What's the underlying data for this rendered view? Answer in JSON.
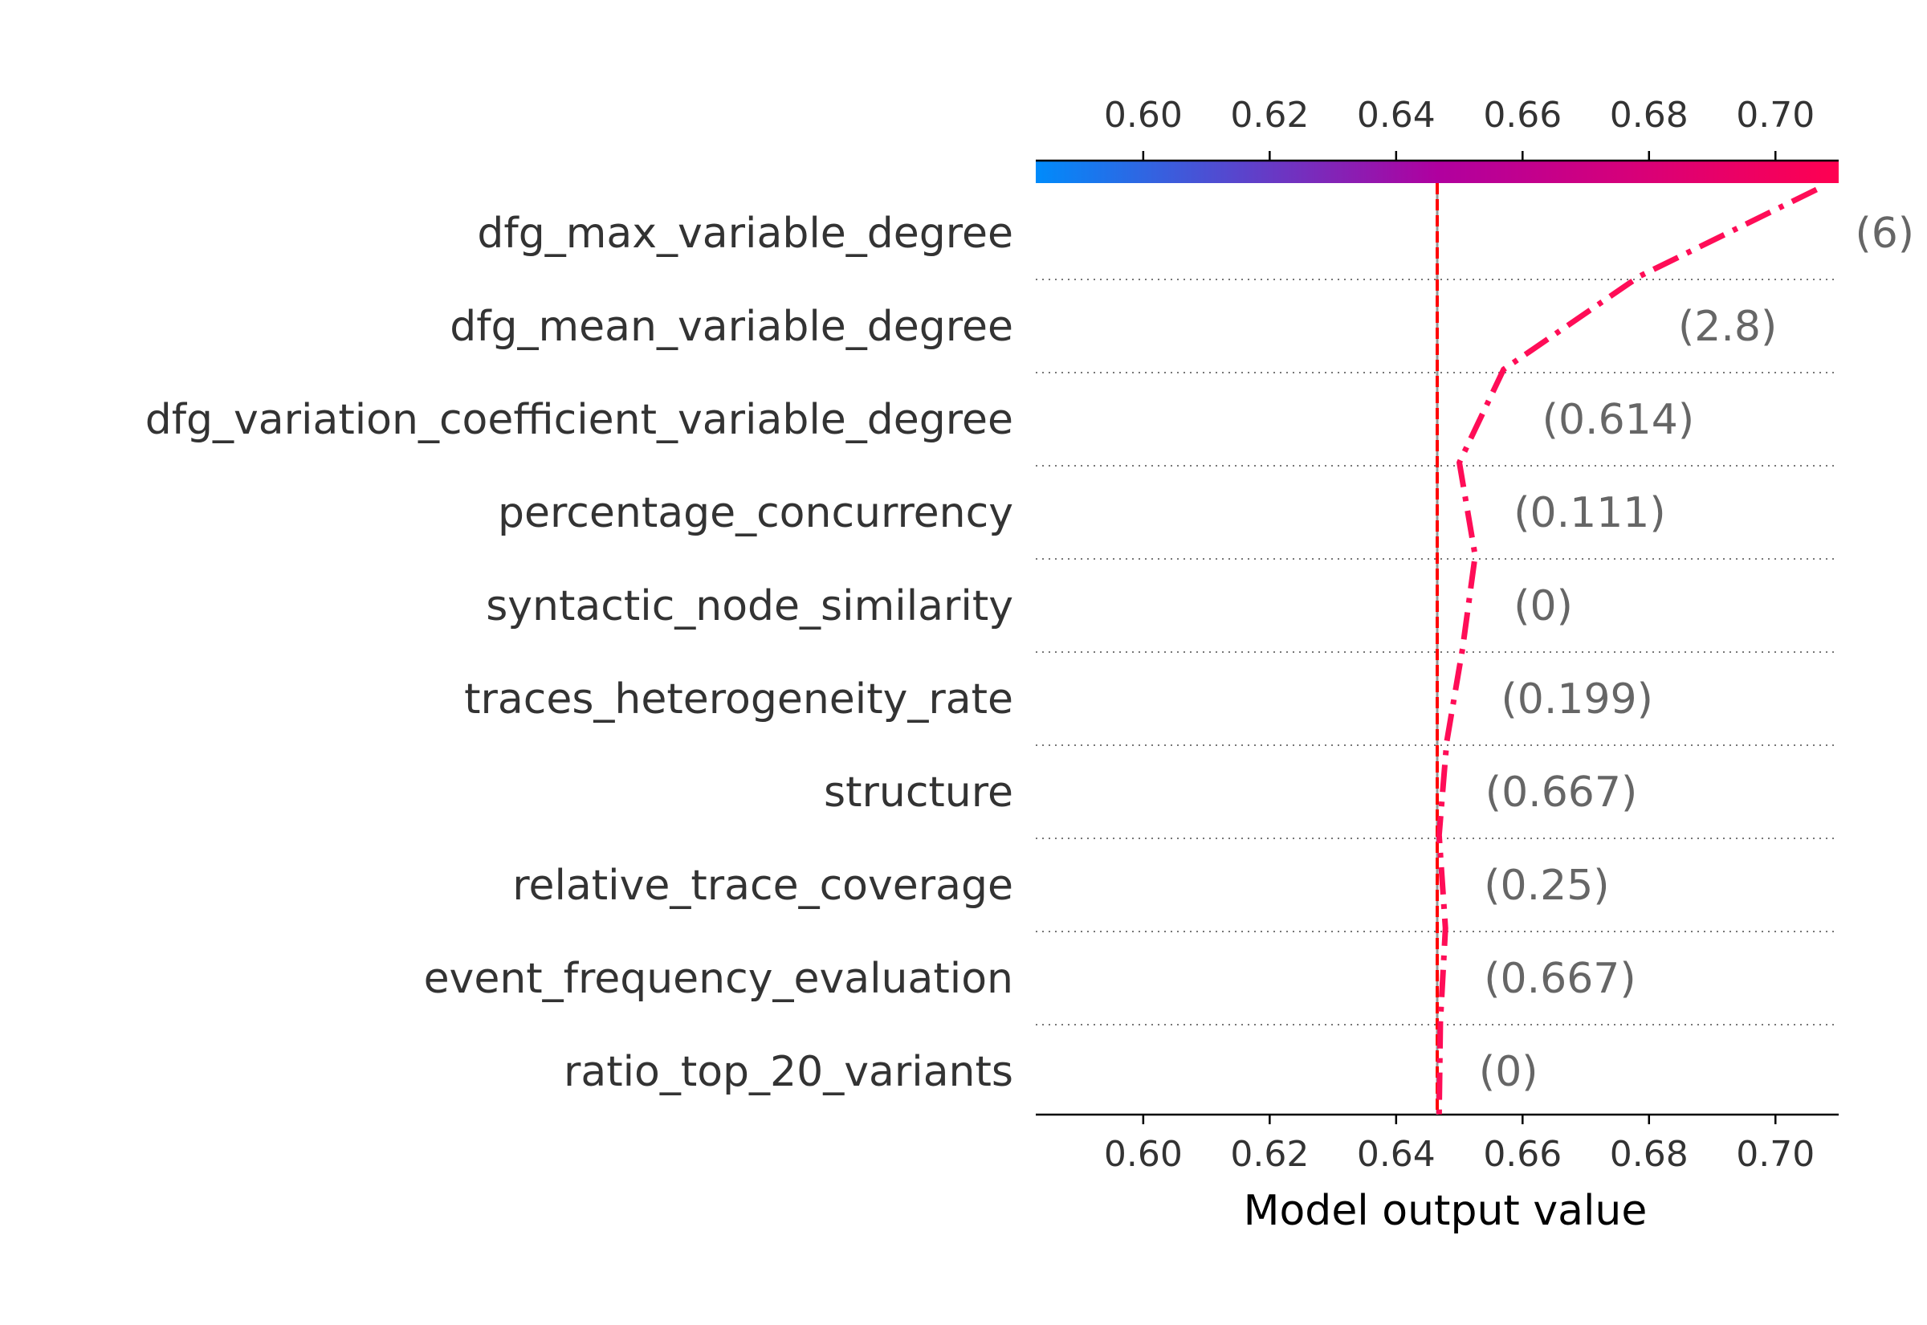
{
  "chart_data": {
    "type": "line",
    "chart_kind": "decision-plot",
    "title": "",
    "xlabel": "Model output value",
    "ylabel": "",
    "xlim": [
      0.583,
      0.71
    ],
    "xticks": [
      "0.60",
      "0.62",
      "0.64",
      "0.66",
      "0.68",
      "0.70"
    ],
    "xtick_values": [
      0.6,
      0.62,
      0.64,
      0.66,
      0.68,
      0.7
    ],
    "base_value": 0.6465,
    "colorbar": {
      "from": "#008bfb",
      "mid": "#b0009f",
      "to": "#ff0051",
      "range": [
        0.583,
        0.71
      ]
    },
    "line_color": "#ff0d57",
    "base_line_color": "#ff0000",
    "features": [
      {
        "name": "dfg_max_variable_degree",
        "value_label": "(6)"
      },
      {
        "name": "dfg_mean_variable_degree",
        "value_label": "(2.8)"
      },
      {
        "name": "dfg_variation_coefficient_variable_degree",
        "value_label": "(0.614)"
      },
      {
        "name": "percentage_concurrency",
        "value_label": "(0.111)"
      },
      {
        "name": "syntactic_node_similarity",
        "value_label": "(0)"
      },
      {
        "name": "traces_heterogeneity_rate",
        "value_label": "(0.199)"
      },
      {
        "name": "structure",
        "value_label": "(0.667)"
      },
      {
        "name": "relative_trace_coverage",
        "value_label": "(0.25)"
      },
      {
        "name": "event_frequency_evaluation",
        "value_label": "(0.667)"
      },
      {
        "name": "ratio_top_20_variants",
        "value_label": "(0)"
      }
    ],
    "path_x": [
      0.7065,
      0.6785,
      0.657,
      0.65,
      0.6525,
      0.6505,
      0.648,
      0.6468,
      0.6478,
      0.647,
      0.6468
    ]
  }
}
